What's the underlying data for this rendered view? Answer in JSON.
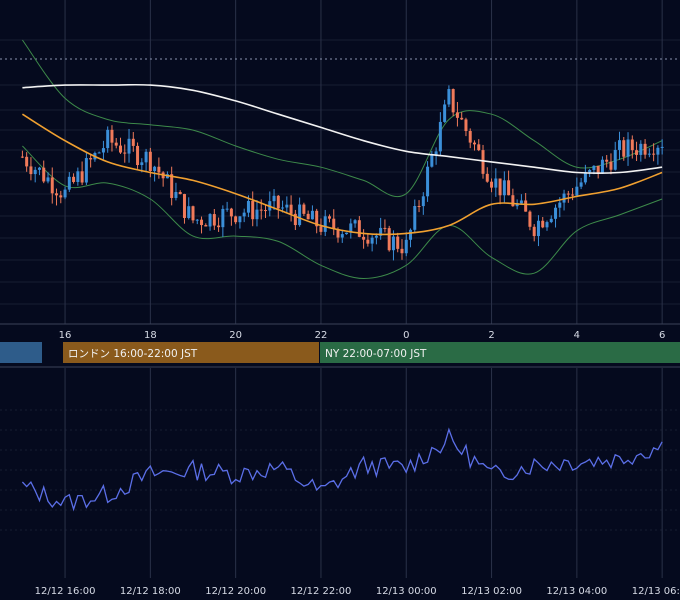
{
  "colors": {
    "background": "#050a1e",
    "grid": "#2a3148",
    "candle_up": "#3b8fd9",
    "candle_down": "#f07a5a",
    "ma_short": "#f0a030",
    "ma_long": "#f2f2f2",
    "bollinger": "#3d8a4a",
    "oscillator": "#5b6fe8",
    "session_tokyo": "#2e5c8a",
    "session_london": "#8a5a1c",
    "session_ny": "#2a6b45",
    "session_text": "#f0f0f0"
  },
  "sessions": {
    "london_label": "ロンドン 16:00-22:00 JST",
    "ny_label": "NY 22:00-07:00 JST"
  },
  "chart_data": [
    {
      "type": "candlestick",
      "x_axis": {
        "ticks": [
          "16",
          "18",
          "20",
          "22",
          "0",
          "2",
          "4",
          "6"
        ]
      },
      "grid": true,
      "overlays": [
        "moving average (orange)",
        "moving average (white)",
        "bollinger bands (green)"
      ],
      "x": [
        "12/12 15:00",
        "12/12 16:00",
        "12/12 17:00",
        "12/12 18:00",
        "12/12 19:00",
        "12/12 20:00",
        "12/12 21:00",
        "12/12 22:00",
        "12/12 23:00",
        "12/13 00:00",
        "12/13 01:00",
        "12/13 02:00",
        "12/13 03:00",
        "12/13 04:00",
        "12/13 05:00",
        "12/13 06:00"
      ],
      "close": [
        0.56,
        0.42,
        0.62,
        0.55,
        0.32,
        0.35,
        0.37,
        0.3,
        0.28,
        0.22,
        0.78,
        0.48,
        0.3,
        0.45,
        0.58,
        0.62
      ],
      "ma_short": [
        0.72,
        0.62,
        0.54,
        0.5,
        0.47,
        0.42,
        0.36,
        0.3,
        0.27,
        0.27,
        0.3,
        0.38,
        0.38,
        0.41,
        0.44,
        0.5
      ],
      "ma_long": [
        0.82,
        0.83,
        0.83,
        0.83,
        0.81,
        0.77,
        0.72,
        0.67,
        0.62,
        0.58,
        0.56,
        0.54,
        0.52,
        0.5,
        0.5,
        0.52
      ],
      "upper_band": [
        1.0,
        0.78,
        0.7,
        0.68,
        0.66,
        0.6,
        0.55,
        0.52,
        0.47,
        0.42,
        0.7,
        0.72,
        0.62,
        0.52,
        0.55,
        0.62
      ],
      "lower_band": [
        0.6,
        0.45,
        0.46,
        0.4,
        0.26,
        0.26,
        0.24,
        0.15,
        0.1,
        0.15,
        0.3,
        0.18,
        0.12,
        0.28,
        0.34,
        0.4
      ]
    },
    {
      "type": "line",
      "name": "oscillator",
      "x_axis": {
        "ticks": [
          "12/12 16:00",
          "12/12 18:00",
          "12/12 20:00",
          "12/12 22:00",
          "12/13 00:00",
          "12/13 02:00",
          "12/13 04:00",
          "12/13 06:00"
        ]
      },
      "grid": true,
      "values": [
        0.35,
        0.2,
        0.28,
        0.46,
        0.5,
        0.46,
        0.52,
        0.3,
        0.54,
        0.52,
        0.78,
        0.45,
        0.55,
        0.58,
        0.6,
        0.72
      ]
    }
  ]
}
